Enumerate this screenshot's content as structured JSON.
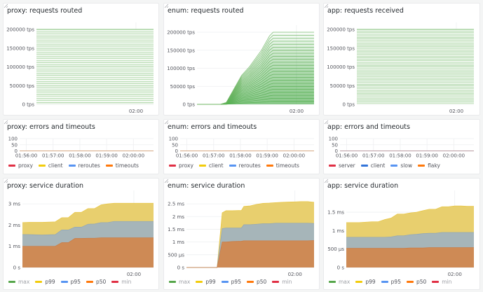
{
  "colors": {
    "green": "#56a64b",
    "yellow": "#f2cc0c",
    "blue": "#5794f2",
    "orange": "#ff780a",
    "red": "#e02f44",
    "p99_fill": "#e8cf6e",
    "p95_fill": "#a6b5b9",
    "p50_fill": "#ce8a55"
  },
  "panels": {
    "proxy_requests": {
      "title": "proxy: requests routed"
    },
    "enum_requests": {
      "title": "enum: requests routed"
    },
    "app_requests": {
      "title": "app: requests received"
    },
    "proxy_errors": {
      "title": "proxy: errors and timeouts",
      "legend": [
        "proxy",
        "client",
        "reroutes",
        "timeouts"
      ]
    },
    "enum_errors": {
      "title": "enum: errors and timeouts",
      "legend": [
        "proxy",
        "client",
        "reroutes",
        "timeouts"
      ]
    },
    "app_errors": {
      "title": "app: errors and timeouts",
      "legend": [
        "server",
        "client",
        "slow",
        "flaky"
      ]
    },
    "proxy_duration": {
      "title": "proxy: service duration",
      "legend": [
        "max",
        "p99",
        "p95",
        "p50",
        "min"
      ]
    },
    "enum_duration": {
      "title": "enum: service duration",
      "legend": [
        "max",
        "p99",
        "p95",
        "p50",
        "min"
      ]
    },
    "app_duration": {
      "title": "app: service duration",
      "legend": [
        "max",
        "p99",
        "p95",
        "p50",
        "min"
      ]
    }
  },
  "chart_data": [
    {
      "id": "proxy_requests",
      "type": "line",
      "title": "proxy: requests routed",
      "ylabel": "",
      "xlabel": "",
      "ylim": [
        0,
        200000
      ],
      "yticks": [
        "0 tps",
        "50000 tps",
        "100000 tps",
        "150000 tps",
        "200000 tps"
      ],
      "ytick_values": [
        0,
        50000,
        100000,
        150000,
        200000
      ],
      "xticks": [
        "02:00"
      ],
      "xtick_positions": [
        0.85
      ],
      "series_style": "stacked constant lines",
      "series_count": 36,
      "series_levels": [
        5555,
        11111,
        16666,
        22222,
        27777,
        33333,
        38888,
        44444,
        50000,
        55555,
        61111,
        66666,
        72222,
        77777,
        83333,
        88888,
        94444,
        100000,
        105555,
        111111,
        116666,
        122222,
        127777,
        133333,
        138888,
        144444,
        150000,
        155555,
        161111,
        166666,
        172222,
        177777,
        183333,
        188888,
        194444,
        200000
      ],
      "color": "#56a64b",
      "grid": true
    },
    {
      "id": "enum_requests",
      "type": "line",
      "title": "enum: requests routed",
      "ylim": [
        0,
        200000
      ],
      "yticks": [
        "0 tps",
        "50000 tps",
        "100000 tps",
        "150000 tps",
        "200000 tps"
      ],
      "ytick_values": [
        0,
        50000,
        100000,
        150000,
        200000
      ],
      "xticks": [
        "02:00"
      ],
      "xtick_positions": [
        0.85
      ],
      "x": [
        0,
        0.2,
        0.25,
        0.38,
        0.45,
        0.55,
        0.62,
        0.65,
        1.0
      ],
      "top_series": [
        0,
        0,
        5000,
        80000,
        105000,
        150000,
        190000,
        200000,
        200000
      ],
      "series_count": 24,
      "series_final_levels": [
        8333,
        16666,
        25000,
        33333,
        41666,
        50000,
        58333,
        66666,
        75000,
        83333,
        91666,
        100000,
        108333,
        116666,
        125000,
        133333,
        141666,
        150000,
        158333,
        166666,
        175000,
        183333,
        191666,
        200000
      ],
      "color": "#56a64b",
      "grid": true
    },
    {
      "id": "app_requests",
      "type": "line",
      "title": "app: requests received",
      "ylim": [
        0,
        200000
      ],
      "yticks": [
        "0 tps",
        "50000 tps",
        "100000 tps",
        "150000 tps",
        "200000 tps"
      ],
      "ytick_values": [
        0,
        50000,
        100000,
        150000,
        200000
      ],
      "xticks": [
        "02:00"
      ],
      "xtick_positions": [
        0.85
      ],
      "series_count": 48,
      "color": "#56a64b",
      "grid": true
    },
    {
      "id": "proxy_errors",
      "type": "line",
      "title": "proxy: errors and timeouts",
      "ylim": [
        0,
        100
      ],
      "yticks": [
        "0",
        "50",
        "100"
      ],
      "ytick_values": [
        0,
        50,
        100
      ],
      "xticks": [
        "01:56:00",
        "01:57:00",
        "01:58:00",
        "01:59:00",
        "02:00:00"
      ],
      "xtick_positions": [
        0.05,
        0.25,
        0.45,
        0.65,
        0.85
      ],
      "series": [
        {
          "name": "proxy",
          "color": "#e02f44",
          "values": [
            0,
            0
          ]
        },
        {
          "name": "client",
          "color": "#f2cc0c",
          "values": [
            0,
            0
          ]
        },
        {
          "name": "reroutes",
          "color": "#5794f2",
          "values": [
            0,
            0
          ]
        },
        {
          "name": "timeouts",
          "color": "#ff780a",
          "values": [
            0,
            0
          ]
        }
      ],
      "legend": "bottom"
    },
    {
      "id": "enum_errors",
      "type": "line",
      "title": "enum: errors and timeouts",
      "ylim": [
        0,
        100
      ],
      "yticks": [
        "0",
        "50",
        "100"
      ],
      "ytick_values": [
        0,
        50,
        100
      ],
      "xticks": [
        "01:56:00",
        "01:57:00",
        "01:58:00",
        "01:59:00",
        "02:00:00"
      ],
      "xtick_positions": [
        0.05,
        0.25,
        0.45,
        0.65,
        0.85
      ],
      "series": [
        {
          "name": "proxy",
          "color": "#e02f44",
          "values": [
            0,
            0
          ]
        },
        {
          "name": "client",
          "color": "#f2cc0c",
          "values": [
            0,
            0
          ]
        },
        {
          "name": "reroutes",
          "color": "#5794f2",
          "values": [
            0,
            0
          ]
        },
        {
          "name": "timeouts",
          "color": "#ff780a",
          "values": [
            0,
            0
          ]
        }
      ],
      "legend": "bottom"
    },
    {
      "id": "app_errors",
      "type": "line",
      "title": "app: errors and timeouts",
      "ylim": [
        0,
        100
      ],
      "yticks": [
        "0",
        "50",
        "100"
      ],
      "ytick_values": [
        0,
        50,
        100
      ],
      "xticks": [
        "01:56:00",
        "01:57:00",
        "01:58:00",
        "01:59:00",
        "02:00:00"
      ],
      "xtick_positions": [
        0.05,
        0.25,
        0.45,
        0.65,
        0.85
      ],
      "series": [
        {
          "name": "server",
          "color": "#e02f44",
          "values": [
            0,
            0
          ]
        },
        {
          "name": "client",
          "color": "#3274d9",
          "values": [
            0,
            0
          ]
        },
        {
          "name": "slow",
          "color": "#5794f2",
          "values": [
            0,
            0
          ]
        },
        {
          "name": "flaky",
          "color": "#ff780a",
          "values": [
            0,
            0
          ]
        }
      ],
      "legend": "bottom"
    },
    {
      "id": "proxy_duration",
      "type": "area",
      "title": "proxy: service duration",
      "unit": "ms",
      "ylim": [
        0,
        3.3
      ],
      "yticks": [
        "0 s",
        "1 ms",
        "2 ms",
        "3 ms"
      ],
      "ytick_values": [
        0,
        1,
        2,
        3
      ],
      "xticks": [
        "02:00"
      ],
      "xtick_positions": [
        0.85
      ],
      "x": [
        0,
        0.05,
        0.15,
        0.25,
        0.3,
        0.35,
        0.4,
        0.45,
        0.5,
        0.55,
        0.6,
        0.65,
        0.7,
        0.75,
        0.8,
        0.85,
        0.9,
        0.95,
        1.0
      ],
      "series": [
        {
          "name": "p99",
          "color": "#f2cc0c",
          "values": [
            2.12,
            2.13,
            2.13,
            2.15,
            2.35,
            2.35,
            2.6,
            2.6,
            2.78,
            2.78,
            2.95,
            3.0,
            3.03,
            3.03,
            3.03,
            3.03,
            3.03,
            3.03,
            3.03
          ]
        },
        {
          "name": "p95",
          "color": "#5794f2",
          "values": [
            1.55,
            1.55,
            1.53,
            1.55,
            1.77,
            1.77,
            1.9,
            1.9,
            2.04,
            2.05,
            2.12,
            2.12,
            2.17,
            2.17,
            2.17,
            2.17,
            2.17,
            2.17,
            2.17
          ]
        },
        {
          "name": "p50",
          "color": "#ff780a",
          "values": [
            1.0,
            1.0,
            1.0,
            1.0,
            1.17,
            1.17,
            1.37,
            1.37,
            1.38,
            1.38,
            1.4,
            1.4,
            1.4,
            1.4,
            1.4,
            1.4,
            1.4,
            1.4,
            1.4
          ]
        }
      ],
      "legend_entries": [
        "max",
        "p99",
        "p95",
        "p50",
        "min"
      ],
      "legend": "bottom"
    },
    {
      "id": "enum_duration",
      "type": "area",
      "title": "enum: service duration",
      "unit": "ms",
      "ylim": [
        0,
        2.75
      ],
      "yticks": [
        "0 s",
        "500 µs",
        "1 ms",
        "1.5 ms",
        "2 ms",
        "2.5 ms"
      ],
      "ytick_values": [
        0,
        0.5,
        1,
        1.5,
        2,
        2.5
      ],
      "xticks": [
        "02:00"
      ],
      "xtick_positions": [
        0.85
      ],
      "x": [
        0,
        0.24,
        0.28,
        0.31,
        0.36,
        0.43,
        0.45,
        0.5,
        0.55,
        0.6,
        0.65,
        0.7,
        0.75,
        0.8,
        0.85,
        0.9,
        0.95,
        1.0
      ],
      "series": [
        {
          "name": "p99",
          "color": "#f2cc0c",
          "values": [
            0,
            0,
            2.15,
            2.23,
            2.23,
            2.24,
            2.4,
            2.42,
            2.48,
            2.52,
            2.53,
            2.55,
            2.56,
            2.57,
            2.58,
            2.59,
            2.59,
            2.56
          ]
        },
        {
          "name": "p95",
          "color": "#5794f2",
          "values": [
            0,
            0,
            1.53,
            1.55,
            1.55,
            1.55,
            1.68,
            1.68,
            1.7,
            1.72,
            1.72,
            1.74,
            1.74,
            1.74,
            1.74,
            1.74,
            1.74,
            1.73
          ]
        },
        {
          "name": "p50",
          "color": "#ff780a",
          "values": [
            0,
            0,
            1.0,
            1.0,
            1.02,
            1.03,
            1.05,
            1.05,
            1.05,
            1.05,
            1.05,
            1.05,
            1.05,
            1.05,
            1.05,
            1.05,
            1.05,
            1.06
          ]
        }
      ],
      "legend_entries": [
        "max",
        "p99",
        "p95",
        "p50",
        "min"
      ],
      "legend": "bottom"
    },
    {
      "id": "app_duration",
      "type": "area",
      "title": "app: service duration",
      "unit": "ms",
      "ylim": [
        0,
        1.9
      ],
      "yticks": [
        "0 s",
        "500 µs",
        "1 ms",
        "1.5 ms"
      ],
      "ytick_values": [
        0,
        0.5,
        1,
        1.5
      ],
      "xticks": [
        "02:00"
      ],
      "xtick_positions": [
        0.85
      ],
      "x": [
        0,
        0.1,
        0.2,
        0.25,
        0.3,
        0.35,
        0.4,
        0.45,
        0.5,
        0.55,
        0.6,
        0.65,
        0.7,
        0.75,
        0.8,
        0.85,
        0.9,
        0.95,
        1.0
      ],
      "series": [
        {
          "name": "p99",
          "color": "#f2cc0c",
          "values": [
            1.22,
            1.22,
            1.24,
            1.24,
            1.3,
            1.34,
            1.45,
            1.45,
            1.48,
            1.5,
            1.54,
            1.58,
            1.58,
            1.65,
            1.65,
            1.67,
            1.67,
            1.66,
            1.66
          ]
        },
        {
          "name": "p95",
          "color": "#5794f2",
          "values": [
            0.82,
            0.82,
            0.82,
            0.82,
            0.82,
            0.83,
            0.86,
            0.86,
            0.89,
            0.9,
            0.92,
            0.93,
            0.93,
            0.95,
            0.95,
            0.95,
            0.95,
            0.95,
            0.95
          ]
        },
        {
          "name": "p50",
          "color": "#ff780a",
          "values": [
            0.52,
            0.52,
            0.52,
            0.52,
            0.52,
            0.52,
            0.52,
            0.52,
            0.53,
            0.53,
            0.53,
            0.54,
            0.54,
            0.54,
            0.54,
            0.54,
            0.54,
            0.54,
            0.54
          ]
        }
      ],
      "legend_entries": [
        "max",
        "p99",
        "p95",
        "p50",
        "min"
      ],
      "legend": "bottom"
    }
  ]
}
